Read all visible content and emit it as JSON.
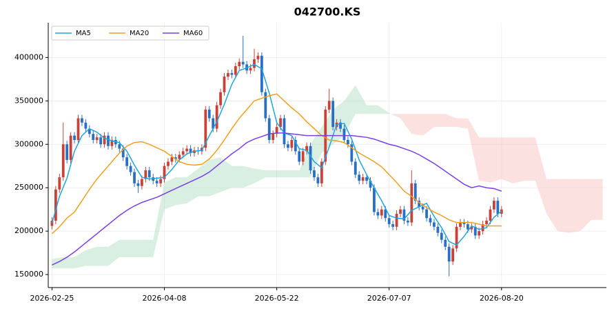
{
  "chart_data": {
    "type": "candlestick",
    "title": "042700.KS",
    "x": [
      0,
      1,
      2,
      3,
      4,
      5,
      6,
      7,
      8,
      9,
      10,
      11,
      12,
      13,
      14,
      15,
      16,
      17,
      18,
      19,
      20,
      21,
      22,
      23,
      24,
      25,
      26,
      27,
      28,
      29,
      30,
      31,
      32,
      33,
      34,
      35,
      36,
      37,
      38,
      39,
      40,
      41,
      42,
      43,
      44,
      45,
      46,
      47,
      48,
      49,
      50,
      51,
      52,
      53,
      54,
      55,
      56,
      57,
      58,
      59,
      60,
      61,
      62,
      63,
      64,
      65,
      66,
      67,
      68,
      69,
      70,
      71,
      72,
      73,
      74,
      75,
      76,
      77,
      78,
      79,
      80,
      81,
      82,
      83,
      84,
      85,
      86,
      87,
      88,
      89,
      90,
      91,
      92,
      93,
      94,
      95,
      96,
      97,
      98,
      99,
      100,
      101,
      102,
      103,
      104,
      105,
      106,
      107,
      108,
      109,
      110,
      111,
      112,
      113,
      114,
      115,
      116,
      117,
      118,
      119,
      120
    ],
    "open": [
      206000,
      212000,
      248000,
      262000,
      300000,
      282000,
      310000,
      305000,
      330000,
      325000,
      318000,
      312000,
      305000,
      308000,
      300000,
      310000,
      298000,
      305000,
      300000,
      295000,
      285000,
      275000,
      268000,
      255000,
      252000,
      260000,
      270000,
      262000,
      258000,
      255000,
      260000,
      275000,
      280000,
      285000,
      283000,
      288000,
      292000,
      295000,
      290000,
      293000,
      292000,
      296000,
      340000,
      330000,
      318000,
      345000,
      360000,
      378000,
      382000,
      380000,
      390000,
      395000,
      392000,
      385000,
      388000,
      398000,
      402000,
      360000,
      330000,
      305000,
      312000,
      320000,
      330000,
      300000,
      296000,
      305000,
      292000,
      280000,
      292000,
      298000,
      270000,
      262000,
      255000,
      280000,
      340000,
      350000,
      320000,
      325000,
      318000,
      305000,
      300000,
      280000,
      265000,
      258000,
      262000,
      258000,
      250000,
      222000,
      218000,
      225000,
      215000,
      208000,
      205000,
      220000,
      225000,
      212000,
      210000,
      255000,
      235000,
      228000,
      225000,
      215000,
      210000,
      205000,
      198000,
      190000,
      182000,
      165000,
      180000,
      205000,
      210000,
      208000,
      202000,
      205000,
      195000,
      200000,
      208000,
      212000,
      225000,
      235000,
      220000
    ],
    "high": [
      216000,
      252000,
      266000,
      325000,
      304000,
      314000,
      314000,
      334000,
      334000,
      329000,
      322000,
      316000,
      312000,
      312000,
      314000,
      314000,
      309000,
      309000,
      304000,
      299000,
      289000,
      279000,
      272000,
      259000,
      264000,
      274000,
      274000,
      266000,
      262000,
      264000,
      279000,
      284000,
      289000,
      289000,
      292000,
      296000,
      299000,
      299000,
      297000,
      297000,
      300000,
      344000,
      344000,
      334000,
      349000,
      364000,
      382000,
      386000,
      386000,
      394000,
      399000,
      425000,
      396000,
      392000,
      410000,
      406000,
      406000,
      364000,
      334000,
      316000,
      324000,
      334000,
      334000,
      304000,
      309000,
      309000,
      296000,
      296000,
      302000,
      302000,
      274000,
      266000,
      284000,
      344000,
      364000,
      354000,
      329000,
      329000,
      322000,
      309000,
      304000,
      284000,
      269000,
      266000,
      266000,
      262000,
      254000,
      226000,
      229000,
      229000,
      219000,
      212000,
      224000,
      229000,
      229000,
      216000,
      270000,
      259000,
      239000,
      232000,
      229000,
      219000,
      214000,
      209000,
      202000,
      194000,
      186000,
      184000,
      209000,
      214000,
      214000,
      212000,
      209000,
      209000,
      204000,
      212000,
      216000,
      229000,
      239000,
      239000,
      229000
    ],
    "low": [
      202000,
      208000,
      244000,
      258000,
      278000,
      278000,
      301000,
      301000,
      321000,
      314000,
      308000,
      301000,
      301000,
      296000,
      296000,
      294000,
      294000,
      296000,
      291000,
      281000,
      271000,
      264000,
      251000,
      244000,
      248000,
      256000,
      258000,
      254000,
      251000,
      251000,
      256000,
      271000,
      276000,
      279000,
      279000,
      284000,
      288000,
      286000,
      286000,
      288000,
      288000,
      292000,
      326000,
      314000,
      314000,
      341000,
      356000,
      374000,
      376000,
      376000,
      386000,
      388000,
      381000,
      381000,
      384000,
      394000,
      356000,
      326000,
      301000,
      301000,
      308000,
      316000,
      296000,
      292000,
      292000,
      288000,
      276000,
      276000,
      288000,
      266000,
      258000,
      251000,
      251000,
      276000,
      336000,
      316000,
      316000,
      314000,
      301000,
      296000,
      276000,
      261000,
      254000,
      254000,
      254000,
      246000,
      218000,
      214000,
      214000,
      211000,
      204000,
      201000,
      201000,
      216000,
      208000,
      206000,
      206000,
      231000,
      224000,
      221000,
      211000,
      206000,
      201000,
      194000,
      186000,
      178000,
      148000,
      161000,
      176000,
      201000,
      204000,
      198000,
      198000,
      191000,
      191000,
      196000,
      204000,
      208000,
      221000,
      216000,
      216000
    ],
    "close": [
      212000,
      248000,
      262000,
      300000,
      282000,
      310000,
      305000,
      330000,
      325000,
      318000,
      312000,
      305000,
      308000,
      300000,
      310000,
      298000,
      305000,
      300000,
      295000,
      285000,
      275000,
      268000,
      255000,
      252000,
      260000,
      270000,
      262000,
      258000,
      255000,
      260000,
      275000,
      280000,
      285000,
      283000,
      288000,
      292000,
      295000,
      290000,
      293000,
      292000,
      296000,
      340000,
      330000,
      318000,
      345000,
      360000,
      378000,
      382000,
      380000,
      390000,
      395000,
      392000,
      385000,
      388000,
      398000,
      402000,
      360000,
      330000,
      305000,
      312000,
      320000,
      330000,
      300000,
      296000,
      305000,
      292000,
      280000,
      292000,
      298000,
      270000,
      262000,
      255000,
      280000,
      340000,
      350000,
      320000,
      325000,
      318000,
      305000,
      300000,
      280000,
      265000,
      258000,
      262000,
      258000,
      250000,
      222000,
      218000,
      225000,
      215000,
      208000,
      205000,
      220000,
      225000,
      212000,
      210000,
      255000,
      235000,
      228000,
      225000,
      215000,
      210000,
      205000,
      198000,
      190000,
      182000,
      165000,
      180000,
      205000,
      210000,
      208000,
      202000,
      205000,
      195000,
      200000,
      208000,
      212000,
      225000,
      235000,
      220000,
      225000
    ],
    "up_color": "#c8423a",
    "down_color": "#2a6fc6",
    "series": [
      {
        "name": "MA5",
        "color": "#1ea5de",
        "x": [
          0,
          2,
          4,
          6,
          8,
          10,
          12,
          14,
          16,
          18,
          20,
          22,
          24,
          26,
          28,
          30,
          32,
          34,
          36,
          38,
          40,
          42,
          44,
          46,
          48,
          50,
          52,
          54,
          56,
          58,
          60,
          62,
          64,
          66,
          68,
          70,
          72,
          74,
          76,
          78,
          80,
          82,
          84,
          86,
          88,
          90,
          92,
          94,
          96,
          98,
          100,
          102,
          104,
          106,
          108,
          110,
          112,
          114,
          116,
          118,
          120
        ],
        "values": [
          209000,
          240000,
          261000,
          292000,
          310000,
          318000,
          314000,
          307000,
          304000,
          302000,
          292000,
          276000,
          262000,
          260000,
          261000,
          262000,
          271000,
          282000,
          289000,
          292000,
          293000,
          310000,
          326000,
          346000,
          369000,
          385000,
          388000,
          392000,
          387000,
          359000,
          325000,
          313000,
          310000,
          295000,
          293000,
          280000,
          273000,
          297000,
          323000,
          324000,
          306000,
          282000,
          265000,
          250000,
          235000,
          218000,
          215000,
          214000,
          224000,
          228000,
          232000,
          217000,
          204000,
          188000,
          184000,
          194000,
          206000,
          202000,
          204000,
          216000,
          223000
        ]
      },
      {
        "name": "MA20",
        "color": "#f0a020",
        "x": [
          0,
          2,
          4,
          6,
          8,
          10,
          12,
          14,
          16,
          18,
          20,
          22,
          24,
          26,
          28,
          30,
          32,
          34,
          36,
          38,
          40,
          42,
          44,
          46,
          48,
          50,
          52,
          54,
          56,
          58,
          60,
          62,
          64,
          66,
          68,
          70,
          72,
          74,
          76,
          78,
          80,
          82,
          84,
          86,
          88,
          90,
          92,
          94,
          96,
          98,
          100,
          102,
          104,
          106,
          108,
          110,
          112,
          114,
          116,
          118,
          120
        ],
        "values": [
          197000,
          205000,
          215000,
          222000,
          235000,
          248000,
          260000,
          270000,
          280000,
          290000,
          298000,
          302000,
          303000,
          300000,
          296000,
          292000,
          286000,
          280000,
          277000,
          276000,
          277000,
          283000,
          293000,
          305000,
          318000,
          330000,
          340000,
          350000,
          353000,
          356000,
          358000,
          350000,
          342000,
          335000,
          326000,
          318000,
          310000,
          305000,
          304000,
          302000,
          296000,
          290000,
          285000,
          280000,
          274000,
          265000,
          256000,
          246000,
          240000,
          233000,
          227000,
          222000,
          218000,
          213000,
          210000,
          210000,
          210000,
          208000,
          206000,
          206000,
          206000
        ]
      },
      {
        "name": "MA60",
        "color": "#7b3fe4",
        "x": [
          0,
          2,
          4,
          6,
          8,
          10,
          12,
          14,
          16,
          18,
          20,
          22,
          24,
          26,
          28,
          30,
          32,
          34,
          36,
          38,
          40,
          42,
          44,
          46,
          48,
          50,
          52,
          54,
          56,
          58,
          60,
          62,
          64,
          66,
          68,
          70,
          72,
          74,
          76,
          78,
          80,
          82,
          84,
          86,
          88,
          90,
          92,
          94,
          96,
          98,
          100,
          102,
          104,
          106,
          108,
          110,
          112,
          114,
          116,
          118,
          120
        ],
        "values": [
          161000,
          165000,
          170000,
          176000,
          183000,
          190000,
          197000,
          204000,
          211000,
          218000,
          224000,
          229000,
          233000,
          236000,
          239000,
          243000,
          247000,
          251000,
          255000,
          259000,
          263000,
          268000,
          275000,
          282000,
          289000,
          295000,
          302000,
          306000,
          309000,
          312000,
          313000,
          313000,
          312000,
          311000,
          310000,
          310000,
          310000,
          310000,
          310000,
          310000,
          310000,
          309000,
          308000,
          306000,
          303000,
          300000,
          298000,
          295000,
          292000,
          288000,
          283000,
          278000,
          272000,
          266000,
          260000,
          254000,
          250000,
          252000,
          250000,
          249000,
          246000
        ]
      }
    ],
    "cloud": {
      "x": [
        0,
        3,
        6,
        9,
        12,
        15,
        18,
        21,
        24,
        27,
        30,
        33,
        36,
        39,
        42,
        45,
        48,
        51,
        54,
        57,
        60,
        63,
        66,
        69,
        72,
        75,
        78,
        81,
        84,
        87,
        90,
        93,
        96,
        99,
        102,
        105,
        108,
        111,
        114,
        117,
        120,
        123,
        126,
        129,
        132,
        135,
        138,
        141,
        144,
        147
      ],
      "span_a": [
        168000,
        170000,
        170000,
        178000,
        182000,
        182000,
        190000,
        190000,
        190000,
        190000,
        256000,
        262000,
        262000,
        272000,
        282000,
        285000,
        275000,
        275000,
        272000,
        270000,
        270000,
        270000,
        270000,
        300000,
        320000,
        340000,
        350000,
        368000,
        345000,
        345000,
        336000,
        330000,
        312000,
        310000,
        320000,
        320000,
        320000,
        318000,
        258000,
        256000,
        260000,
        255000,
        258000,
        258000,
        220000,
        200000,
        198000,
        200000,
        213000,
        213000
      ],
      "span_b": [
        157000,
        157000,
        157000,
        160000,
        160000,
        160000,
        170000,
        170000,
        170000,
        170000,
        225000,
        230000,
        232000,
        240000,
        240000,
        245000,
        250000,
        250000,
        255000,
        262000,
        262000,
        262000,
        262000,
        262000,
        290000,
        300000,
        310000,
        335000,
        335000,
        335000,
        335000,
        335000,
        335000,
        335000,
        335000,
        335000,
        330000,
        330000,
        308000,
        308000,
        308000,
        308000,
        308000,
        308000,
        260000,
        260000,
        260000,
        260000,
        260000,
        260000
      ],
      "up_color": "#9fd8b4",
      "down_color": "#f8b4b4"
    },
    "xlim": [
      -1,
      148
    ],
    "ylim": [
      135000,
      440000
    ],
    "xticks": [
      {
        "value": 0,
        "label": "2026-02-25"
      },
      {
        "value": 30,
        "label": "2026-04-08"
      },
      {
        "value": 60,
        "label": "2026-05-22"
      },
      {
        "value": 90,
        "label": "2026-07-07"
      },
      {
        "value": 120,
        "label": "2026-08-20"
      }
    ],
    "yticks": [
      150000,
      200000,
      250000,
      300000,
      350000,
      400000
    ],
    "grid": true,
    "legend": "upper left"
  }
}
